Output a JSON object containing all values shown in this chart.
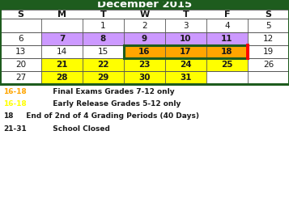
{
  "title": "December 2015",
  "title_bg": "#1e5c1e",
  "title_color": "white",
  "days_header": [
    "S",
    "M",
    "T",
    "W",
    "T",
    "F",
    "S"
  ],
  "weeks": [
    [
      "",
      "",
      "1",
      "2",
      "3",
      "4",
      "5"
    ],
    [
      "6",
      "7",
      "8",
      "9",
      "10",
      "11",
      "12"
    ],
    [
      "13",
      "14",
      "15",
      "16",
      "17",
      "18",
      "19"
    ],
    [
      "20",
      "21",
      "22",
      "23",
      "24",
      "25",
      "26"
    ],
    [
      "27",
      "28",
      "29",
      "30",
      "31",
      "",
      ""
    ]
  ],
  "cell_colors": {
    "7": "#cc99ff",
    "8": "#cc99ff",
    "9": "#cc99ff",
    "10": "#cc99ff",
    "11": "#cc99ff",
    "16": "#ffa500",
    "17": "#ffa500",
    "18": "#ffa500",
    "21": "#ffff00",
    "22": "#ffff00",
    "23": "#ffff00",
    "24": "#ffff00",
    "25": "#ffff00",
    "28": "#ffff00",
    "29": "#ffff00",
    "30": "#ffff00",
    "31": "#ffff00"
  },
  "legend_items": [
    {
      "prefix": "16-18",
      "prefix_color": "#ffa500",
      "suffix": "  Final Exams Grades 7-12 only"
    },
    {
      "prefix": "16-18",
      "prefix_color": "#ffff00",
      "suffix": "  Early Release Grades 5-12 only"
    },
    {
      "prefix": "18",
      "prefix_color": "#1a1a1a",
      "suffix": "  End of 2nd of 4 Grading Periods (40 Days)"
    },
    {
      "prefix": "21-31",
      "prefix_color": "#1a1a1a",
      "suffix": "  School Closed"
    }
  ],
  "outer_border": "#1e5c1e",
  "grid_color": "#555555",
  "text_color": "#1a1a1a",
  "num_color_highlighted": "#cc0000"
}
